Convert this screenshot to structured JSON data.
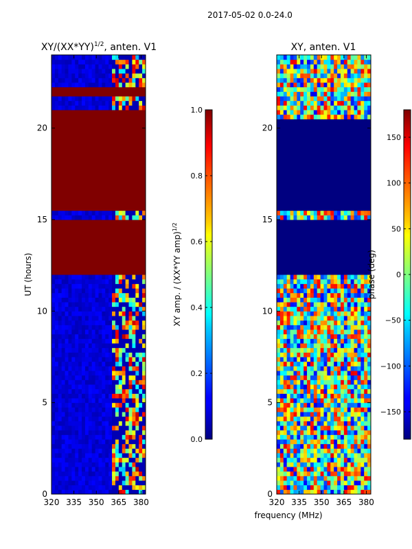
{
  "suptitle": "2017-05-02 0.0-24.0",
  "xlabel": "frequency (MHz)",
  "chart_data": [
    {
      "type": "heatmap",
      "title_main": "XY/(XX*YY)",
      "title_sup": "1/2",
      "title_rest": ", anten. V1",
      "ylabel": "UT (hours)",
      "xlim": [
        320,
        383
      ],
      "ylim": [
        0,
        24
      ],
      "xticks": [
        "320",
        "335",
        "350",
        "365",
        "380"
      ],
      "xtick_values": [
        320,
        335,
        350,
        365,
        380
      ],
      "yticks": [
        "0",
        "5",
        "10",
        "15",
        "20"
      ],
      "ytick_values": [
        0,
        5,
        10,
        15,
        20
      ],
      "colorbar": {
        "label_main": "XY amp. / (XX*YY amp)",
        "label_sup": "1/2",
        "range": [
          0,
          1
        ],
        "ticks": [
          "0.0",
          "0.2",
          "0.4",
          "0.6",
          "0.8",
          "1.0"
        ],
        "tick_values": [
          0,
          0.2,
          0.4,
          0.6,
          0.8,
          1.0
        ]
      },
      "regions": [
        {
          "name": "saturated-band-low",
          "y": [
            12.1,
            15.0
          ],
          "value": 1.0
        },
        {
          "name": "saturated-band-mid",
          "y": [
            15.6,
            21.0
          ],
          "value": 1.0
        },
        {
          "name": "saturated-band-high",
          "y": [
            21.8,
            22.2
          ],
          "value": 1.0
        }
      ]
    },
    {
      "type": "heatmap",
      "title": "XY, anten. V1",
      "xlim": [
        320,
        383
      ],
      "ylim": [
        0,
        24
      ],
      "xticks": [
        "320",
        "335",
        "350",
        "365",
        "380"
      ],
      "xtick_values": [
        320,
        335,
        350,
        365,
        380
      ],
      "yticks": [
        "0",
        "5",
        "10",
        "15",
        "20"
      ],
      "ytick_values": [
        0,
        5,
        10,
        15,
        20
      ],
      "colorbar": {
        "label": "phase (deg)",
        "range": [
          -180,
          180
        ],
        "ticks": [
          "−150",
          "−100",
          "−50",
          "0",
          "50",
          "100",
          "150"
        ],
        "tick_values": [
          -150,
          -100,
          -50,
          0,
          50,
          100,
          150
        ]
      },
      "regions": [
        {
          "name": "flagged-band-low",
          "y": [
            12.1,
            15.0
          ],
          "value": -180
        },
        {
          "name": "flagged-band-mid",
          "y": [
            15.6,
            20.4
          ],
          "value": -180
        }
      ]
    }
  ]
}
